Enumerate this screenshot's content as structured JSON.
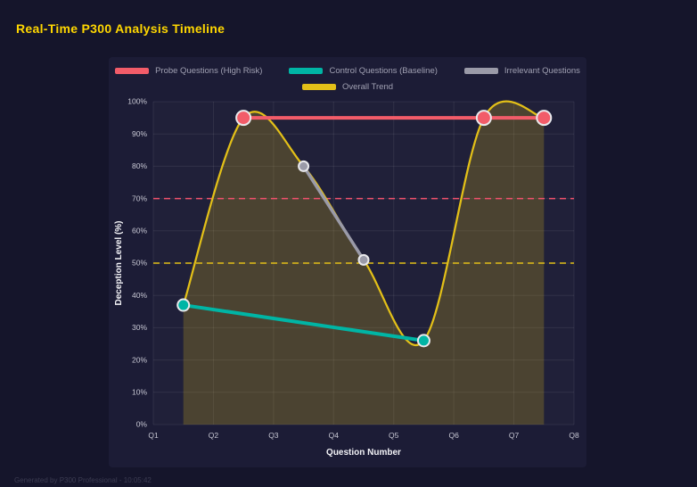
{
  "page": {
    "title": "Real-Time P300 Analysis Timeline",
    "footer": "Generated by P300 Professional - 10:05:42"
  },
  "theme": {
    "background": "#15152b",
    "panel": "#1c1c36",
    "title_color": "#ffd700",
    "grid": "rgba(255,255,255,0.08)",
    "plot_bg": "rgba(255,255,255,0.02)",
    "tick_color": "#c8c8d4",
    "axis_title_color": "#f2f2f6",
    "marker_ring": "#e9e9ec",
    "area_fill": "rgba(227,192,24,0.22)"
  },
  "chart_data": {
    "type": "line",
    "title": "Real-Time P300 Analysis Timeline",
    "xlabel": "Question Number",
    "ylabel": "Deception Level (%)",
    "xlim": [
      1,
      8
    ],
    "ylim": [
      0,
      100
    ],
    "x_tick_values": [
      1,
      2,
      3,
      4,
      5,
      6,
      7,
      8
    ],
    "x_tick_labels": [
      "Q1",
      "Q2",
      "Q3",
      "Q4",
      "Q5",
      "Q6",
      "Q7",
      "Q8"
    ],
    "y_tick_values": [
      0,
      10,
      20,
      30,
      40,
      50,
      60,
      70,
      80,
      90,
      100
    ],
    "y_tick_labels": [
      "0%",
      "10%",
      "20%",
      "30%",
      "40%",
      "50%",
      "60%",
      "70%",
      "80%",
      "90%",
      "100%"
    ],
    "grid": true,
    "legend_position": "top",
    "series": [
      {
        "name": "Probe Questions (High Risk)",
        "color": "#f25c69",
        "x": [
          2.5,
          6.5,
          7.5
        ],
        "y": [
          95,
          95,
          95
        ],
        "line_width": 4,
        "marker_radius": 8,
        "markers": true,
        "smooth": false,
        "fill_to_zero": false
      },
      {
        "name": "Control Questions (Baseline)",
        "color": "#00b5a5",
        "x": [
          1.5,
          5.5
        ],
        "y": [
          37,
          26
        ],
        "line_width": 4,
        "marker_radius": 6.5,
        "markers": true,
        "smooth": false,
        "fill_to_zero": false
      },
      {
        "name": "Irrelevant Questions",
        "color": "#9a9aa8",
        "x": [
          3.5,
          4.5
        ],
        "y": [
          80,
          51
        ],
        "line_width": 3.5,
        "marker_radius": 5.5,
        "markers": true,
        "smooth": false,
        "fill_to_zero": false
      },
      {
        "name": "Overall Trend",
        "color": "#e3c018",
        "x": [
          1.5,
          2.5,
          3.5,
          4.5,
          5.5,
          6.5,
          7.5
        ],
        "y": [
          37,
          95,
          80,
          51,
          26,
          95,
          95
        ],
        "line_width": 2.25,
        "marker_radius": 0,
        "markers": false,
        "smooth": true,
        "fill_to_zero": true
      }
    ],
    "thresholds": [
      {
        "y": 70,
        "color": "#f2516d",
        "style": "dashed"
      },
      {
        "y": 50,
        "color": "#e3c018",
        "style": "dashed"
      }
    ]
  }
}
